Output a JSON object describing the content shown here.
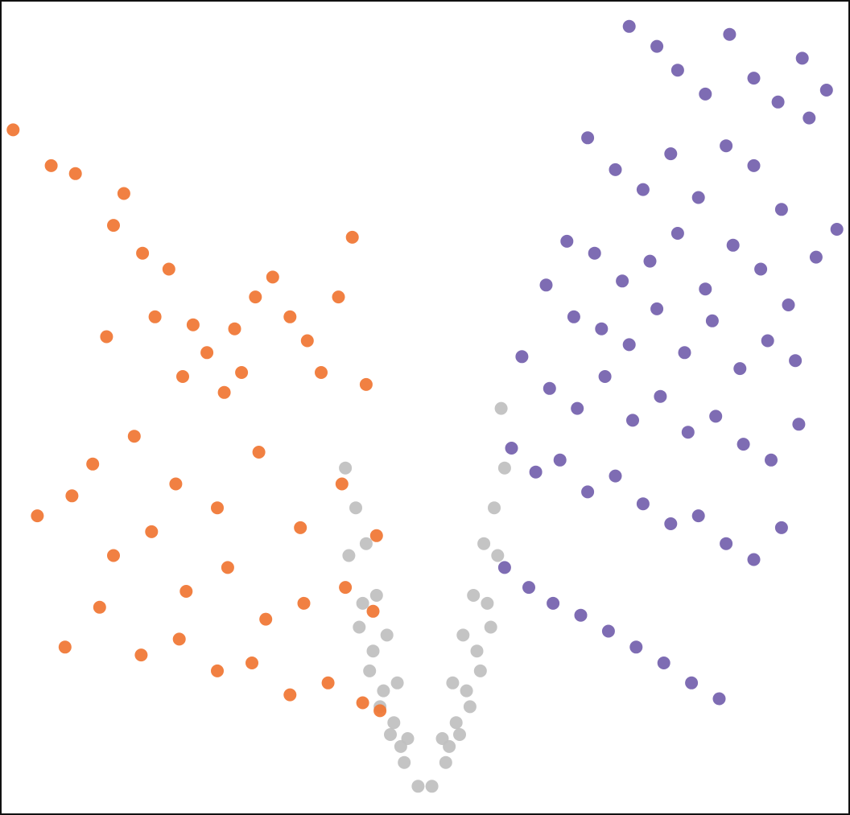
{
  "chart_data": {
    "type": "scatter",
    "title": "",
    "xlabel": "",
    "ylabel": "",
    "xlim": [
      -6,
      6
    ],
    "ylim": [
      0,
      10
    ],
    "grid": false,
    "legend": "none",
    "colors": {
      "down": "#f07532",
      "up": "#7360ad",
      "ns": "#bfbfbf"
    },
    "series": [
      {
        "group": "down",
        "x": [
          -5.95,
          -5.4,
          -5.05,
          -4.35,
          -4.5,
          -4.08,
          -3.7,
          -3.9,
          -4.6,
          -3.35,
          -3.15,
          -3.5,
          -2.9,
          -2.65,
          -2.75,
          -2.45,
          -2.2,
          -1.95,
          -1.7,
          -1.5,
          -1.25,
          -1.05,
          -0.85,
          -4.8,
          -4.2,
          -3.6,
          -3.0,
          -2.4,
          -1.8,
          -1.2,
          -0.7,
          -5.6,
          -5.1,
          -4.5,
          -3.95,
          -3.45,
          -2.85,
          -2.3,
          -1.75,
          -1.15,
          -0.75,
          -5.2,
          -4.7,
          -4.1,
          -3.55,
          -3.0,
          -2.5,
          -1.95,
          -1.4,
          -0.9,
          -0.65
        ],
        "y": [
          8.55,
          8.1,
          8.0,
          7.75,
          7.35,
          7.0,
          6.8,
          6.2,
          5.95,
          6.1,
          5.75,
          5.45,
          5.25,
          5.5,
          6.05,
          6.45,
          6.7,
          6.2,
          5.9,
          5.5,
          6.45,
          7.2,
          5.35,
          4.35,
          4.7,
          4.1,
          3.8,
          4.5,
          3.55,
          4.1,
          3.45,
          3.7,
          3.95,
          3.2,
          3.5,
          2.75,
          3.05,
          2.4,
          2.6,
          2.8,
          2.5,
          2.05,
          2.55,
          1.95,
          2.15,
          1.75,
          1.85,
          1.45,
          1.6,
          1.35,
          1.25
        ]
      },
      {
        "group": "up",
        "x": [
          2.95,
          3.35,
          3.65,
          4.05,
          4.4,
          4.75,
          5.1,
          5.45,
          5.8,
          2.35,
          2.75,
          3.15,
          3.55,
          3.95,
          4.35,
          4.75,
          5.15,
          5.55,
          5.95,
          2.05,
          2.45,
          2.85,
          3.25,
          3.65,
          4.05,
          4.45,
          4.85,
          5.25,
          5.65,
          1.75,
          2.15,
          2.55,
          2.95,
          3.35,
          3.75,
          4.15,
          4.55,
          4.95,
          5.35,
          1.4,
          1.8,
          2.2,
          2.6,
          3.0,
          3.4,
          3.8,
          4.2,
          4.6,
          5.0,
          5.4,
          1.25,
          1.6,
          1.95,
          2.35,
          2.75,
          3.15,
          3.55,
          3.95,
          4.35,
          4.75,
          5.15,
          1.15,
          1.5,
          1.85,
          2.25,
          2.65,
          3.05,
          3.45,
          3.85,
          4.25
        ],
        "y": [
          9.85,
          9.6,
          9.3,
          9.0,
          9.75,
          9.2,
          8.9,
          9.45,
          9.05,
          8.45,
          8.05,
          7.8,
          8.25,
          7.7,
          8.35,
          8.1,
          7.55,
          8.7,
          7.3,
          7.15,
          7.0,
          6.65,
          6.9,
          7.25,
          6.55,
          7.1,
          6.8,
          6.35,
          6.95,
          6.6,
          6.2,
          6.05,
          5.85,
          6.3,
          5.75,
          6.15,
          5.55,
          5.9,
          5.65,
          5.7,
          5.3,
          5.05,
          5.45,
          4.9,
          5.2,
          4.75,
          4.95,
          4.6,
          4.4,
          4.85,
          4.55,
          4.25,
          4.4,
          4.0,
          4.2,
          3.85,
          3.6,
          3.7,
          3.35,
          3.15,
          3.55,
          3.05,
          2.8,
          2.6,
          2.45,
          2.25,
          2.05,
          1.85,
          1.6,
          1.4
        ]
      },
      {
        "group": "ns",
        "x": [
          -1.15,
          -1.0,
          -0.85,
          -0.7,
          -0.55,
          -0.4,
          -0.25,
          -0.1,
          0.1,
          0.25,
          0.4,
          0.55,
          0.7,
          0.85,
          1.0,
          1.15,
          -1.1,
          -0.9,
          -0.75,
          -0.6,
          -0.45,
          -0.3,
          0.3,
          0.45,
          0.6,
          0.75,
          0.9,
          1.05,
          -0.95,
          -0.65,
          -0.35,
          0.35,
          0.65,
          0.95,
          1.1,
          -0.8,
          0.8,
          -0.5,
          0.5
        ],
        "y": [
          4.3,
          3.8,
          3.35,
          2.7,
          2.2,
          1.6,
          0.9,
          0.3,
          0.3,
          0.9,
          1.6,
          2.2,
          2.7,
          3.35,
          3.8,
          4.3,
          3.2,
          2.6,
          2.0,
          1.5,
          1.1,
          0.6,
          0.6,
          1.1,
          1.5,
          2.0,
          2.6,
          3.2,
          2.3,
          1.3,
          0.8,
          0.8,
          1.3,
          2.3,
          5.05,
          1.75,
          1.75,
          0.95,
          0.95
        ]
      }
    ]
  }
}
